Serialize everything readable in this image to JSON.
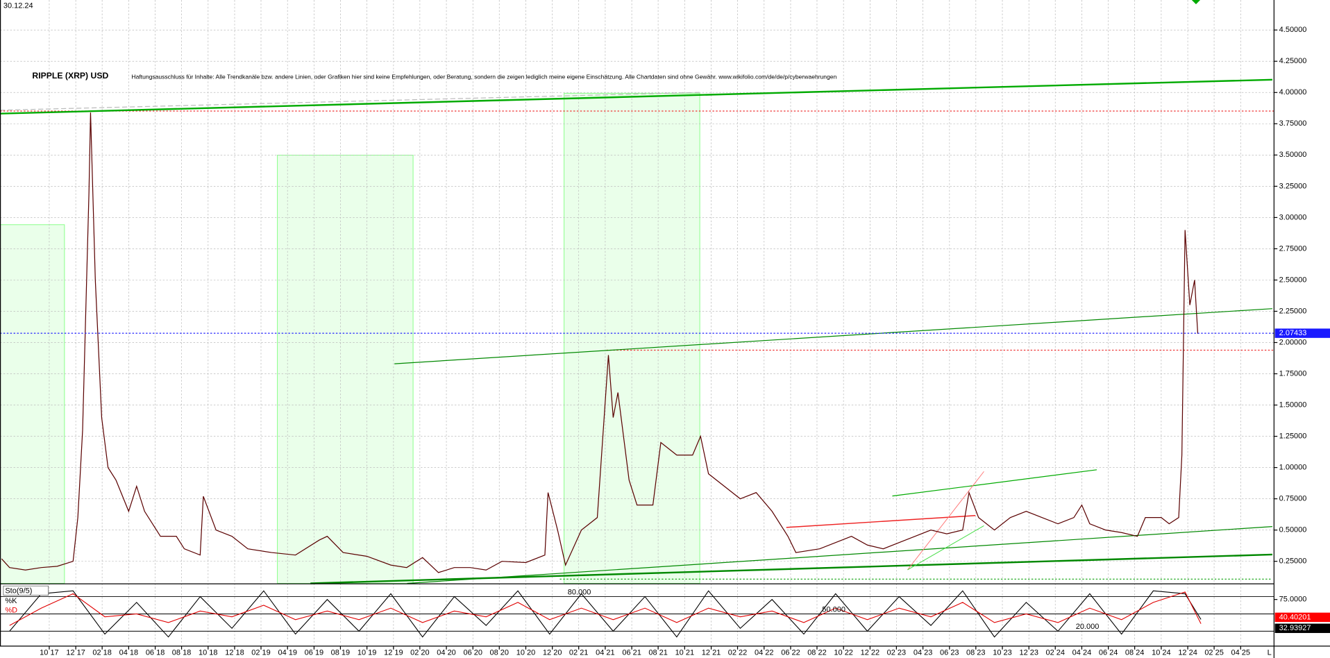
{
  "chart_data": {
    "type": "line",
    "date_label": "30.12.24",
    "title": "RIPPLE (XRP) USD",
    "subtitle": "Haftungsausschluss für Inhalte: Alle Trendkanäle bzw. andere Linien, oder Grafiken hier sind keine Empfehlungen, oder Beratung, sondern die zeigen lediglich meine eigene Einschätzung. Alle Chartdaten sind ohne Gewähr. www.wikifolio.com/de/de/p/cyberwaehrungen",
    "corner_label": "L",
    "x": [
      2017.45,
      2017.5,
      2017.6,
      2017.7,
      2017.8,
      2017.9,
      2017.93,
      2017.96,
      2018.0,
      2018.01,
      2018.04,
      2018.08,
      2018.12,
      2018.17,
      2018.25,
      2018.3,
      2018.35,
      2018.45,
      2018.55,
      2018.6,
      2018.7,
      2018.72,
      2018.8,
      2018.9,
      2019.0,
      2019.15,
      2019.3,
      2019.45,
      2019.5,
      2019.6,
      2019.75,
      2019.9,
      2020.0,
      2020.1,
      2020.2,
      2020.3,
      2020.4,
      2020.5,
      2020.6,
      2020.75,
      2020.87,
      2020.89,
      2020.95,
      2021.0,
      2021.1,
      2021.2,
      2021.27,
      2021.3,
      2021.33,
      2021.4,
      2021.45,
      2021.55,
      2021.6,
      2021.7,
      2021.8,
      2021.85,
      2021.9,
      2022.0,
      2022.1,
      2022.2,
      2022.3,
      2022.4,
      2022.45,
      2022.6,
      2022.7,
      2022.8,
      2022.9,
      2023.0,
      2023.1,
      2023.2,
      2023.3,
      2023.4,
      2023.5,
      2023.54,
      2023.6,
      2023.7,
      2023.8,
      2023.9,
      2024.0,
      2024.1,
      2024.2,
      2024.25,
      2024.3,
      2024.4,
      2024.5,
      2024.6,
      2024.65,
      2024.75,
      2024.8,
      2024.86,
      2024.88,
      2024.9,
      2024.93,
      2024.96,
      2024.98
    ],
    "series": [
      {
        "name": "XRP",
        "color": "#5a0000",
        "values": [
          0.27,
          0.2,
          0.18,
          0.2,
          0.21,
          0.25,
          0.6,
          1.3,
          3.2,
          3.84,
          2.5,
          1.4,
          1.0,
          0.9,
          0.65,
          0.85,
          0.65,
          0.45,
          0.45,
          0.35,
          0.3,
          0.77,
          0.5,
          0.45,
          0.35,
          0.32,
          0.3,
          0.42,
          0.45,
          0.32,
          0.29,
          0.22,
          0.2,
          0.28,
          0.16,
          0.2,
          0.2,
          0.18,
          0.25,
          0.24,
          0.3,
          0.8,
          0.5,
          0.22,
          0.5,
          0.6,
          1.9,
          1.4,
          1.6,
          0.9,
          0.7,
          0.7,
          1.2,
          1.1,
          1.1,
          1.25,
          0.95,
          0.85,
          0.75,
          0.8,
          0.65,
          0.45,
          0.32,
          0.35,
          0.4,
          0.45,
          0.38,
          0.35,
          0.4,
          0.45,
          0.5,
          0.47,
          0.5,
          0.8,
          0.6,
          0.5,
          0.6,
          0.65,
          0.6,
          0.55,
          0.6,
          0.7,
          0.55,
          0.5,
          0.48,
          0.45,
          0.6,
          0.6,
          0.55,
          0.6,
          1.1,
          2.9,
          2.3,
          2.5,
          2.07
        ]
      }
    ],
    "last_price": 2.07433,
    "xlim": [
      2017.44,
      2025.46
    ],
    "ylim": [
      0.07,
      4.74
    ],
    "yticks": [
      {
        "value": 0.25,
        "label": "0.25000"
      },
      {
        "value": 0.5,
        "label": "0.50000"
      },
      {
        "value": 0.75,
        "label": "0.75000"
      },
      {
        "value": 1,
        "label": "1.00000"
      },
      {
        "value": 1.25,
        "label": "1.25000"
      },
      {
        "value": 1.5,
        "label": "1.50000"
      },
      {
        "value": 1.75,
        "label": "1.75000"
      },
      {
        "value": 2,
        "label": "2.00000"
      },
      {
        "value": 2.25,
        "label": "2.25000"
      },
      {
        "value": 2.5,
        "label": "2.50000"
      },
      {
        "value": 2.75,
        "label": "2.75000"
      },
      {
        "value": 3,
        "label": "3.00000"
      },
      {
        "value": 3.25,
        "label": "3.25000"
      },
      {
        "value": 3.5,
        "label": "3.50000"
      },
      {
        "value": 3.75,
        "label": "3.75000"
      },
      {
        "value": 4,
        "label": "4.00000"
      },
      {
        "value": 4.25,
        "label": "4.25000"
      },
      {
        "value": 4.5,
        "label": "4.50000"
      }
    ],
    "xticks": [
      {
        "value": 2017.75,
        "label": "10 17"
      },
      {
        "value": 2017.917,
        "label": "12 17"
      },
      {
        "value": 2018.083,
        "label": "02 18"
      },
      {
        "value": 2018.25,
        "label": "04 18"
      },
      {
        "value": 2018.417,
        "label": "06 18"
      },
      {
        "value": 2018.583,
        "label": "08 18"
      },
      {
        "value": 2018.75,
        "label": "10 18"
      },
      {
        "value": 2018.917,
        "label": "12 18"
      },
      {
        "value": 2019.083,
        "label": "02 19"
      },
      {
        "value": 2019.25,
        "label": "04 19"
      },
      {
        "value": 2019.417,
        "label": "06 19"
      },
      {
        "value": 2019.583,
        "label": "08 19"
      },
      {
        "value": 2019.75,
        "label": "10 19"
      },
      {
        "value": 2019.917,
        "label": "12 19"
      },
      {
        "value": 2020.083,
        "label": "02 20"
      },
      {
        "value": 2020.25,
        "label": "04 20"
      },
      {
        "value": 2020.417,
        "label": "06 20"
      },
      {
        "value": 2020.583,
        "label": "08 20"
      },
      {
        "value": 2020.75,
        "label": "10 20"
      },
      {
        "value": 2020.917,
        "label": "12 20"
      },
      {
        "value": 2021.083,
        "label": "02 21"
      },
      {
        "value": 2021.25,
        "label": "04 21"
      },
      {
        "value": 2021.417,
        "label": "06 21"
      },
      {
        "value": 2021.583,
        "label": "08 21"
      },
      {
        "value": 2021.75,
        "label": "10 21"
      },
      {
        "value": 2021.917,
        "label": "12 21"
      },
      {
        "value": 2022.083,
        "label": "02 22"
      },
      {
        "value": 2022.25,
        "label": "04 22"
      },
      {
        "value": 2022.417,
        "label": "06 22"
      },
      {
        "value": 2022.583,
        "label": "08 22"
      },
      {
        "value": 2022.75,
        "label": "10 22"
      },
      {
        "value": 2022.917,
        "label": "12 22"
      },
      {
        "value": 2023.083,
        "label": "02 23"
      },
      {
        "value": 2023.25,
        "label": "04 23"
      },
      {
        "value": 2023.417,
        "label": "06 23"
      },
      {
        "value": 2023.583,
        "label": "08 23"
      },
      {
        "value": 2023.75,
        "label": "10 23"
      },
      {
        "value": 2023.917,
        "label": "12 23"
      },
      {
        "value": 2024.083,
        "label": "02 24"
      },
      {
        "value": 2024.25,
        "label": "04 24"
      },
      {
        "value": 2024.417,
        "label": "06 24"
      },
      {
        "value": 2024.583,
        "label": "08 24"
      },
      {
        "value": 2024.75,
        "label": "10 24"
      },
      {
        "value": 2024.917,
        "label": "12 24"
      },
      {
        "value": 2025.083,
        "label": "02 25"
      },
      {
        "value": 2025.25,
        "label": "04 25"
      }
    ],
    "grid": true,
    "oscillator": {
      "title": "Sto(9/5)",
      "x": [
        2017.5,
        2017.7,
        2017.9,
        2018.1,
        2018.3,
        2018.5,
        2018.7,
        2018.9,
        2019.1,
        2019.3,
        2019.5,
        2019.7,
        2019.9,
        2020.1,
        2020.3,
        2020.5,
        2020.7,
        2020.9,
        2021.1,
        2021.3,
        2021.5,
        2021.7,
        2021.9,
        2022.1,
        2022.3,
        2022.5,
        2022.7,
        2022.9,
        2023.1,
        2023.3,
        2023.5,
        2023.7,
        2023.9,
        2024.1,
        2024.3,
        2024.5,
        2024.7,
        2024.9,
        2025.0
      ],
      "series": [
        {
          "name": "%K",
          "color": "#000000",
          "values": [
            20,
            85,
            90,
            15,
            70,
            10,
            80,
            25,
            90,
            15,
            75,
            20,
            85,
            10,
            80,
            30,
            90,
            15,
            85,
            20,
            80,
            10,
            90,
            25,
            75,
            15,
            85,
            20,
            80,
            30,
            90,
            10,
            70,
            20,
            85,
            15,
            90,
            85,
            40.40201
          ]
        },
        {
          "name": "%D",
          "color": "#e00000",
          "values": [
            30,
            60,
            85,
            45,
            50,
            35,
            55,
            45,
            65,
            40,
            55,
            40,
            60,
            35,
            55,
            45,
            70,
            40,
            60,
            40,
            60,
            35,
            60,
            45,
            55,
            35,
            60,
            40,
            60,
            45,
            70,
            35,
            50,
            35,
            60,
            40,
            70,
            88,
            32.93927
          ]
        }
      ],
      "ylim": [
        0,
        100
      ],
      "yticks": [
        {
          "value": 75,
          "label": "75.0000"
        }
      ],
      "levels": [
        {
          "value": 80,
          "label": "80.000"
        },
        {
          "value": 50,
          "label": "50.000"
        },
        {
          "value": 20,
          "label": "20.000"
        }
      ]
    }
  }
}
